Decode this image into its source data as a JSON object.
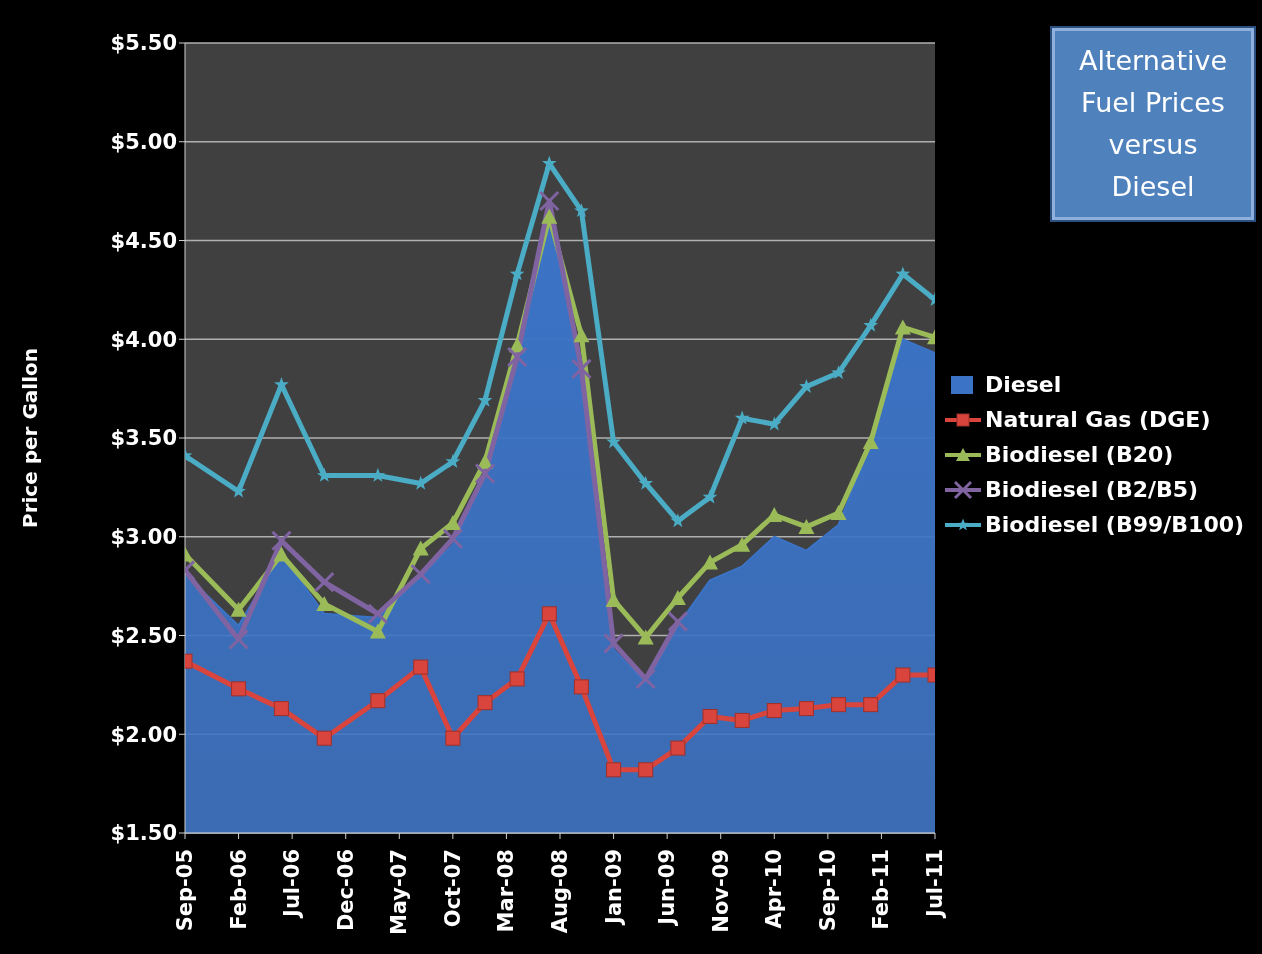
{
  "chart_data": {
    "type": "line",
    "title": "Alternative Fuel Prices versus Diesel",
    "ylabel": "Price per Gallon",
    "x": [
      "2005-09",
      "2006-02",
      "2006-06",
      "2006-10",
      "2007-03",
      "2007-07",
      "2007-10",
      "2008-01",
      "2008-04",
      "2008-07",
      "2008-10",
      "2009-01",
      "2009-04",
      "2009-07",
      "2009-10",
      "2010-01",
      "2010-04",
      "2010-07",
      "2010-10",
      "2011-01",
      "2011-04",
      "2011-07"
    ],
    "series": [
      {
        "name": "Diesel",
        "type": "area",
        "color": "#3b73c6",
        "values": [
          2.81,
          2.55,
          2.91,
          2.61,
          2.59,
          2.8,
          2.96,
          3.3,
          3.9,
          4.64,
          3.8,
          2.43,
          2.26,
          2.55,
          2.78,
          2.85,
          3.0,
          2.93,
          3.06,
          3.47,
          4.0,
          3.93
        ]
      },
      {
        "name": "Natural Gas (DGE)",
        "color": "#d9443c",
        "marker": "square",
        "values": [
          2.37,
          2.23,
          2.13,
          1.98,
          2.17,
          2.34,
          1.98,
          2.16,
          2.28,
          2.61,
          2.24,
          1.82,
          1.82,
          1.93,
          2.09,
          2.07,
          2.12,
          2.13,
          2.15,
          2.15,
          2.3,
          2.3
        ]
      },
      {
        "name": "Biodiesel (B20)",
        "color": "#9bbb59",
        "marker": "triangle",
        "values": [
          2.91,
          2.63,
          2.91,
          2.66,
          2.52,
          2.94,
          3.07,
          3.38,
          3.97,
          4.62,
          4.02,
          2.68,
          2.49,
          2.69,
          2.87,
          2.96,
          3.11,
          3.05,
          3.12,
          3.48,
          4.06,
          4.01
        ]
      },
      {
        "name": "Biodiesel (B2/B5)",
        "color": "#8064a2",
        "marker": "cross",
        "values": [
          2.83,
          2.48,
          2.98,
          2.77,
          2.61,
          2.81,
          2.99,
          3.32,
          3.91,
          4.7,
          3.85,
          2.46,
          2.28,
          2.57,
          null,
          null,
          null,
          null,
          null,
          null,
          null,
          null
        ]
      },
      {
        "name": "Biodiesel (B99/B100)",
        "color": "#4bacc6",
        "marker": "star",
        "values": [
          3.41,
          3.23,
          3.77,
          3.31,
          3.31,
          3.27,
          3.38,
          3.69,
          4.33,
          4.89,
          4.65,
          3.48,
          3.27,
          3.08,
          3.2,
          3.6,
          3.57,
          3.76,
          3.83,
          4.07,
          4.33,
          4.2
        ]
      }
    ],
    "xlim": [
      "2005-09",
      "2011-07"
    ],
    "xticks": [
      {
        "value": "2005-09",
        "label": "Sep-05"
      },
      {
        "value": "2006-02",
        "label": "Feb-06"
      },
      {
        "value": "2006-07",
        "label": "Jul-06"
      },
      {
        "value": "2006-12",
        "label": "Dec-06"
      },
      {
        "value": "2007-05",
        "label": "May-07"
      },
      {
        "value": "2007-10",
        "label": "Oct-07"
      },
      {
        "value": "2008-03",
        "label": "Mar-08"
      },
      {
        "value": "2008-08",
        "label": "Aug-08"
      },
      {
        "value": "2009-01",
        "label": "Jan-09"
      },
      {
        "value": "2009-06",
        "label": "Jun-09"
      },
      {
        "value": "2009-11",
        "label": "Nov-09"
      },
      {
        "value": "2010-04",
        "label": "Apr-10"
      },
      {
        "value": "2010-09",
        "label": "Sep-10"
      },
      {
        "value": "2011-02",
        "label": "Feb-11"
      },
      {
        "value": "2011-07",
        "label": "Jul-11"
      }
    ],
    "ylim": [
      1.5,
      5.5
    ],
    "yticks": [
      {
        "value": 1.5,
        "label": "$1.50"
      },
      {
        "value": 2,
        "label": "$2.00"
      },
      {
        "value": 2.5,
        "label": "$2.50"
      },
      {
        "value": 3,
        "label": "$3.00"
      },
      {
        "value": 3.5,
        "label": "$3.50"
      },
      {
        "value": 4,
        "label": "$4.00"
      },
      {
        "value": 4.5,
        "label": "$4.50"
      },
      {
        "value": 5,
        "label": "$5.00"
      },
      {
        "value": 5.5,
        "label": "$5.50"
      }
    ],
    "grid": "y",
    "legend": "right",
    "line_style": "solid"
  }
}
